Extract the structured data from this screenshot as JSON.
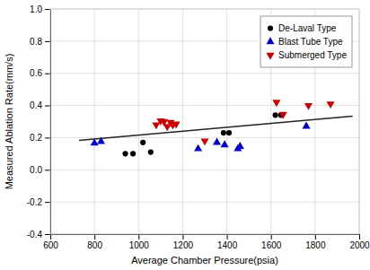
{
  "chart_data": {
    "type": "scatter",
    "x_label": "Average Chamber Pressure(psia)",
    "y_label": "Measured Ablation Rate(mm/s)",
    "xlim": [
      600,
      2000
    ],
    "ylim": [
      -0.4,
      1.0
    ],
    "xticks": [
      600,
      800,
      1000,
      1200,
      1400,
      1600,
      1800,
      2000
    ],
    "yticks": [
      -0.4,
      -0.2,
      {
        "value": 0,
        "label": "0.0"
      },
      0.2,
      0.4,
      0.6,
      0.8,
      {
        "value": 1,
        "label": "1.0"
      }
    ],
    "grid": true,
    "legend": "upper right",
    "series": [
      {
        "type": "line",
        "color": "#222222",
        "x": [
          730,
          1970
        ],
        "values": [
          0.183,
          0.333
        ]
      },
      {
        "name": "De-Laval Type",
        "type": "scatter",
        "marker": "circle",
        "color": "#000000",
        "x": [
          940,
          975,
          1020,
          1055,
          1385,
          1410,
          1620,
          1645
        ],
        "values": [
          0.1,
          0.1,
          0.17,
          0.11,
          0.23,
          0.23,
          0.34,
          0.34
        ]
      },
      {
        "name": "Blast Tube Type",
        "type": "scatter",
        "marker": "triangle-up",
        "color": "#0000cc",
        "x": [
          800,
          830,
          1270,
          1355,
          1390,
          1450,
          1460,
          1760
        ],
        "values": [
          0.165,
          0.175,
          0.13,
          0.17,
          0.155,
          0.13,
          0.145,
          0.27
        ]
      },
      {
        "name": "Submerged Type",
        "type": "scatter",
        "marker": "triangle-down",
        "color": "#cc0000",
        "x": [
          1080,
          1100,
          1115,
          1130,
          1145,
          1155,
          1170,
          1300,
          1625,
          1655,
          1770,
          1870
        ],
        "values": [
          0.28,
          0.305,
          0.3,
          0.27,
          0.295,
          0.28,
          0.285,
          0.18,
          0.42,
          0.345,
          0.4,
          0.41
        ]
      }
    ]
  }
}
